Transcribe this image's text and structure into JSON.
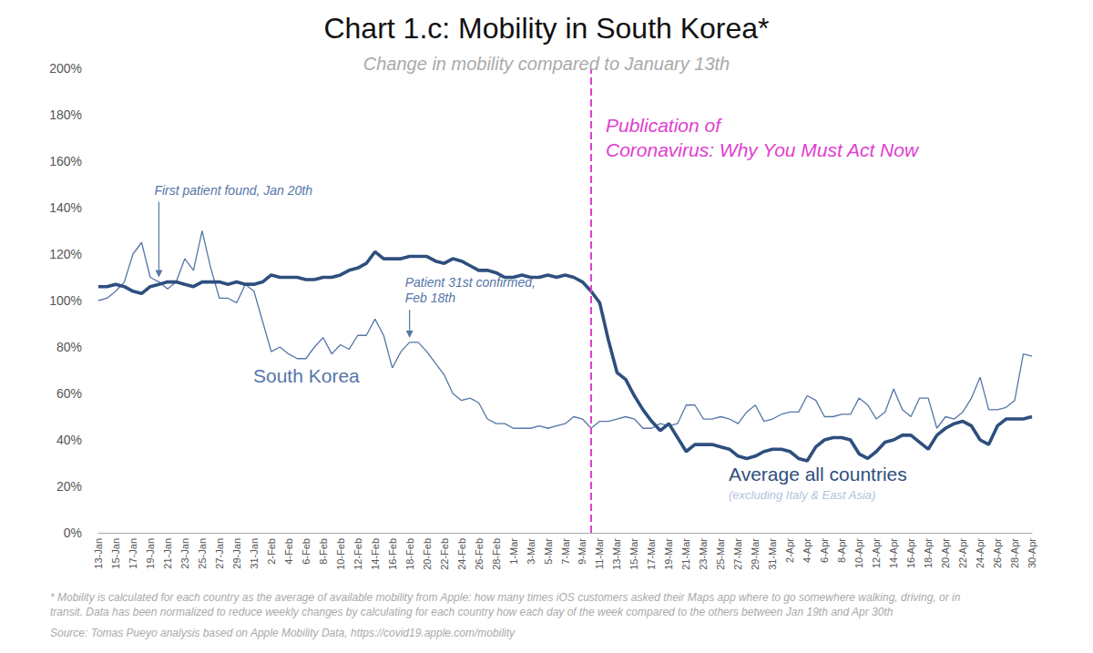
{
  "chart_data": {
    "type": "line",
    "title": "Chart 1.c: Mobility in South Korea*",
    "subtitle": "Change in mobility compared to January 13th",
    "categories": [
      "13-Jan",
      null,
      "15-Jan",
      null,
      "17-Jan",
      null,
      "19-Jan",
      null,
      "21-Jan",
      null,
      "23-Jan",
      null,
      "25-Jan",
      null,
      "27-Jan",
      null,
      "29-Jan",
      null,
      "31-Jan",
      null,
      "2-Feb",
      null,
      "4-Feb",
      null,
      "6-Feb",
      null,
      "8-Feb",
      null,
      "10-Feb",
      null,
      "12-Feb",
      null,
      "14-Feb",
      null,
      "16-Feb",
      null,
      "18-Feb",
      null,
      "20-Feb",
      null,
      "22-Feb",
      null,
      "24-Feb",
      null,
      "26-Feb",
      null,
      "28-Feb",
      null,
      "1-Mar",
      null,
      "3-Mar",
      null,
      "5-Mar",
      null,
      "7-Mar",
      null,
      "9-Mar",
      null,
      "11-Mar",
      null,
      "13-Mar",
      null,
      "15-Mar",
      null,
      "17-Mar",
      null,
      "19-Mar",
      null,
      "21-Mar",
      null,
      "23-Mar",
      null,
      "25-Mar",
      null,
      "27-Mar",
      null,
      "29-Mar",
      null,
      "31-Mar",
      null,
      "2-Apr",
      null,
      "4-Apr",
      null,
      "6-Apr",
      null,
      "8-Apr",
      null,
      "10-Apr",
      null,
      "12-Apr",
      null,
      "14-Apr",
      null,
      "16-Apr",
      null,
      "18-Apr",
      null,
      "20-Apr",
      null,
      "22-Apr",
      null,
      "24-Apr",
      null,
      "26-Apr",
      null,
      "28-Apr",
      null,
      "30-Apr"
    ],
    "series": [
      {
        "name": "South Korea",
        "color": "#5676a8",
        "line_style": "solid",
        "values": [
          100,
          101,
          104,
          108,
          120,
          125,
          110,
          108,
          105,
          108,
          118,
          113,
          130,
          114,
          101,
          101,
          99,
          107,
          104,
          91,
          78,
          80,
          77,
          75,
          75,
          80,
          84,
          77,
          81,
          79,
          85,
          85,
          92,
          85,
          71,
          78,
          82,
          82,
          78,
          73,
          68,
          60,
          57,
          58,
          56,
          49,
          47,
          47,
          45,
          45,
          45,
          46,
          45,
          46,
          47,
          50,
          49,
          45,
          48,
          48,
          49,
          50,
          49,
          45,
          45,
          47,
          46,
          47,
          55,
          55,
          49,
          49,
          50,
          49,
          47,
          52,
          55,
          48,
          49,
          51,
          52,
          52,
          59,
          57,
          50,
          50,
          51,
          51,
          58,
          55,
          49,
          52,
          62,
          53,
          50,
          58,
          58,
          45,
          50,
          49,
          52,
          58,
          67,
          53,
          53,
          54,
          57,
          77,
          76
        ]
      },
      {
        "name": "Average all countries",
        "note": "(excluding Italy & East Asia)",
        "color": "#2e4f7e",
        "line_style": "solid",
        "values": [
          106,
          106,
          107,
          106,
          104,
          103,
          106,
          107,
          108,
          108,
          107,
          106,
          108,
          108,
          108,
          107,
          108,
          107,
          107,
          108,
          111,
          110,
          110,
          110,
          109,
          109,
          110,
          110,
          111,
          113,
          114,
          116,
          121,
          118,
          118,
          118,
          119,
          119,
          119,
          117,
          116,
          118,
          117,
          115,
          113,
          113,
          112,
          110,
          110,
          111,
          110,
          110,
          111,
          110,
          111,
          110,
          108,
          104,
          99,
          83,
          69,
          66,
          59,
          53,
          48,
          44,
          47,
          41,
          35,
          38,
          38,
          38,
          37,
          36,
          33,
          32,
          33,
          35,
          36,
          36,
          35,
          32,
          31,
          37,
          40,
          41,
          41,
          40,
          34,
          32,
          35,
          39,
          40,
          42,
          42,
          39,
          36,
          42,
          45,
          47,
          48,
          46,
          40,
          38,
          46,
          49,
          49,
          49,
          50
        ]
      }
    ],
    "ylim": [
      0,
      200
    ],
    "yticks": [
      {
        "value": 0,
        "label": "0%"
      },
      {
        "value": 20,
        "label": "20%"
      },
      {
        "value": 40,
        "label": "40%"
      },
      {
        "value": 60,
        "label": "60%"
      },
      {
        "value": 80,
        "label": "80%"
      },
      {
        "value": 100,
        "label": "100%"
      },
      {
        "value": 120,
        "label": "120%"
      },
      {
        "value": 140,
        "label": "140%"
      },
      {
        "value": 160,
        "label": "160%"
      },
      {
        "value": 180,
        "label": "180%"
      },
      {
        "value": 200,
        "label": "200%"
      }
    ],
    "grid": false,
    "legend": "none",
    "vline": {
      "x": 57,
      "color": "#e040d0",
      "line_style": "dashed",
      "text": "Publication of\nCoronavirus: Why You Must Act Now"
    },
    "annotations": [
      {
        "x": 7,
        "y": 108,
        "text": "First patient found, Jan 20th"
      },
      {
        "x": 36,
        "y": 82,
        "text": "Patient 31st confirmed,\nFeb 18th"
      }
    ],
    "footnote": "* Mobility is calculated for each country as the average of available mobility from Apple: how many times iOS customers asked their Maps app where to go somewhere walking, driving, or in\ntransit. Data has been normalized to reduce weekly changes by calculating for each country how each day of the week compared to the others between Jan 19th and Apr 30th",
    "source": "Source: Tomas Pueyo analysis based on Apple Mobility Data, https://covid19.apple.com/mobility"
  }
}
